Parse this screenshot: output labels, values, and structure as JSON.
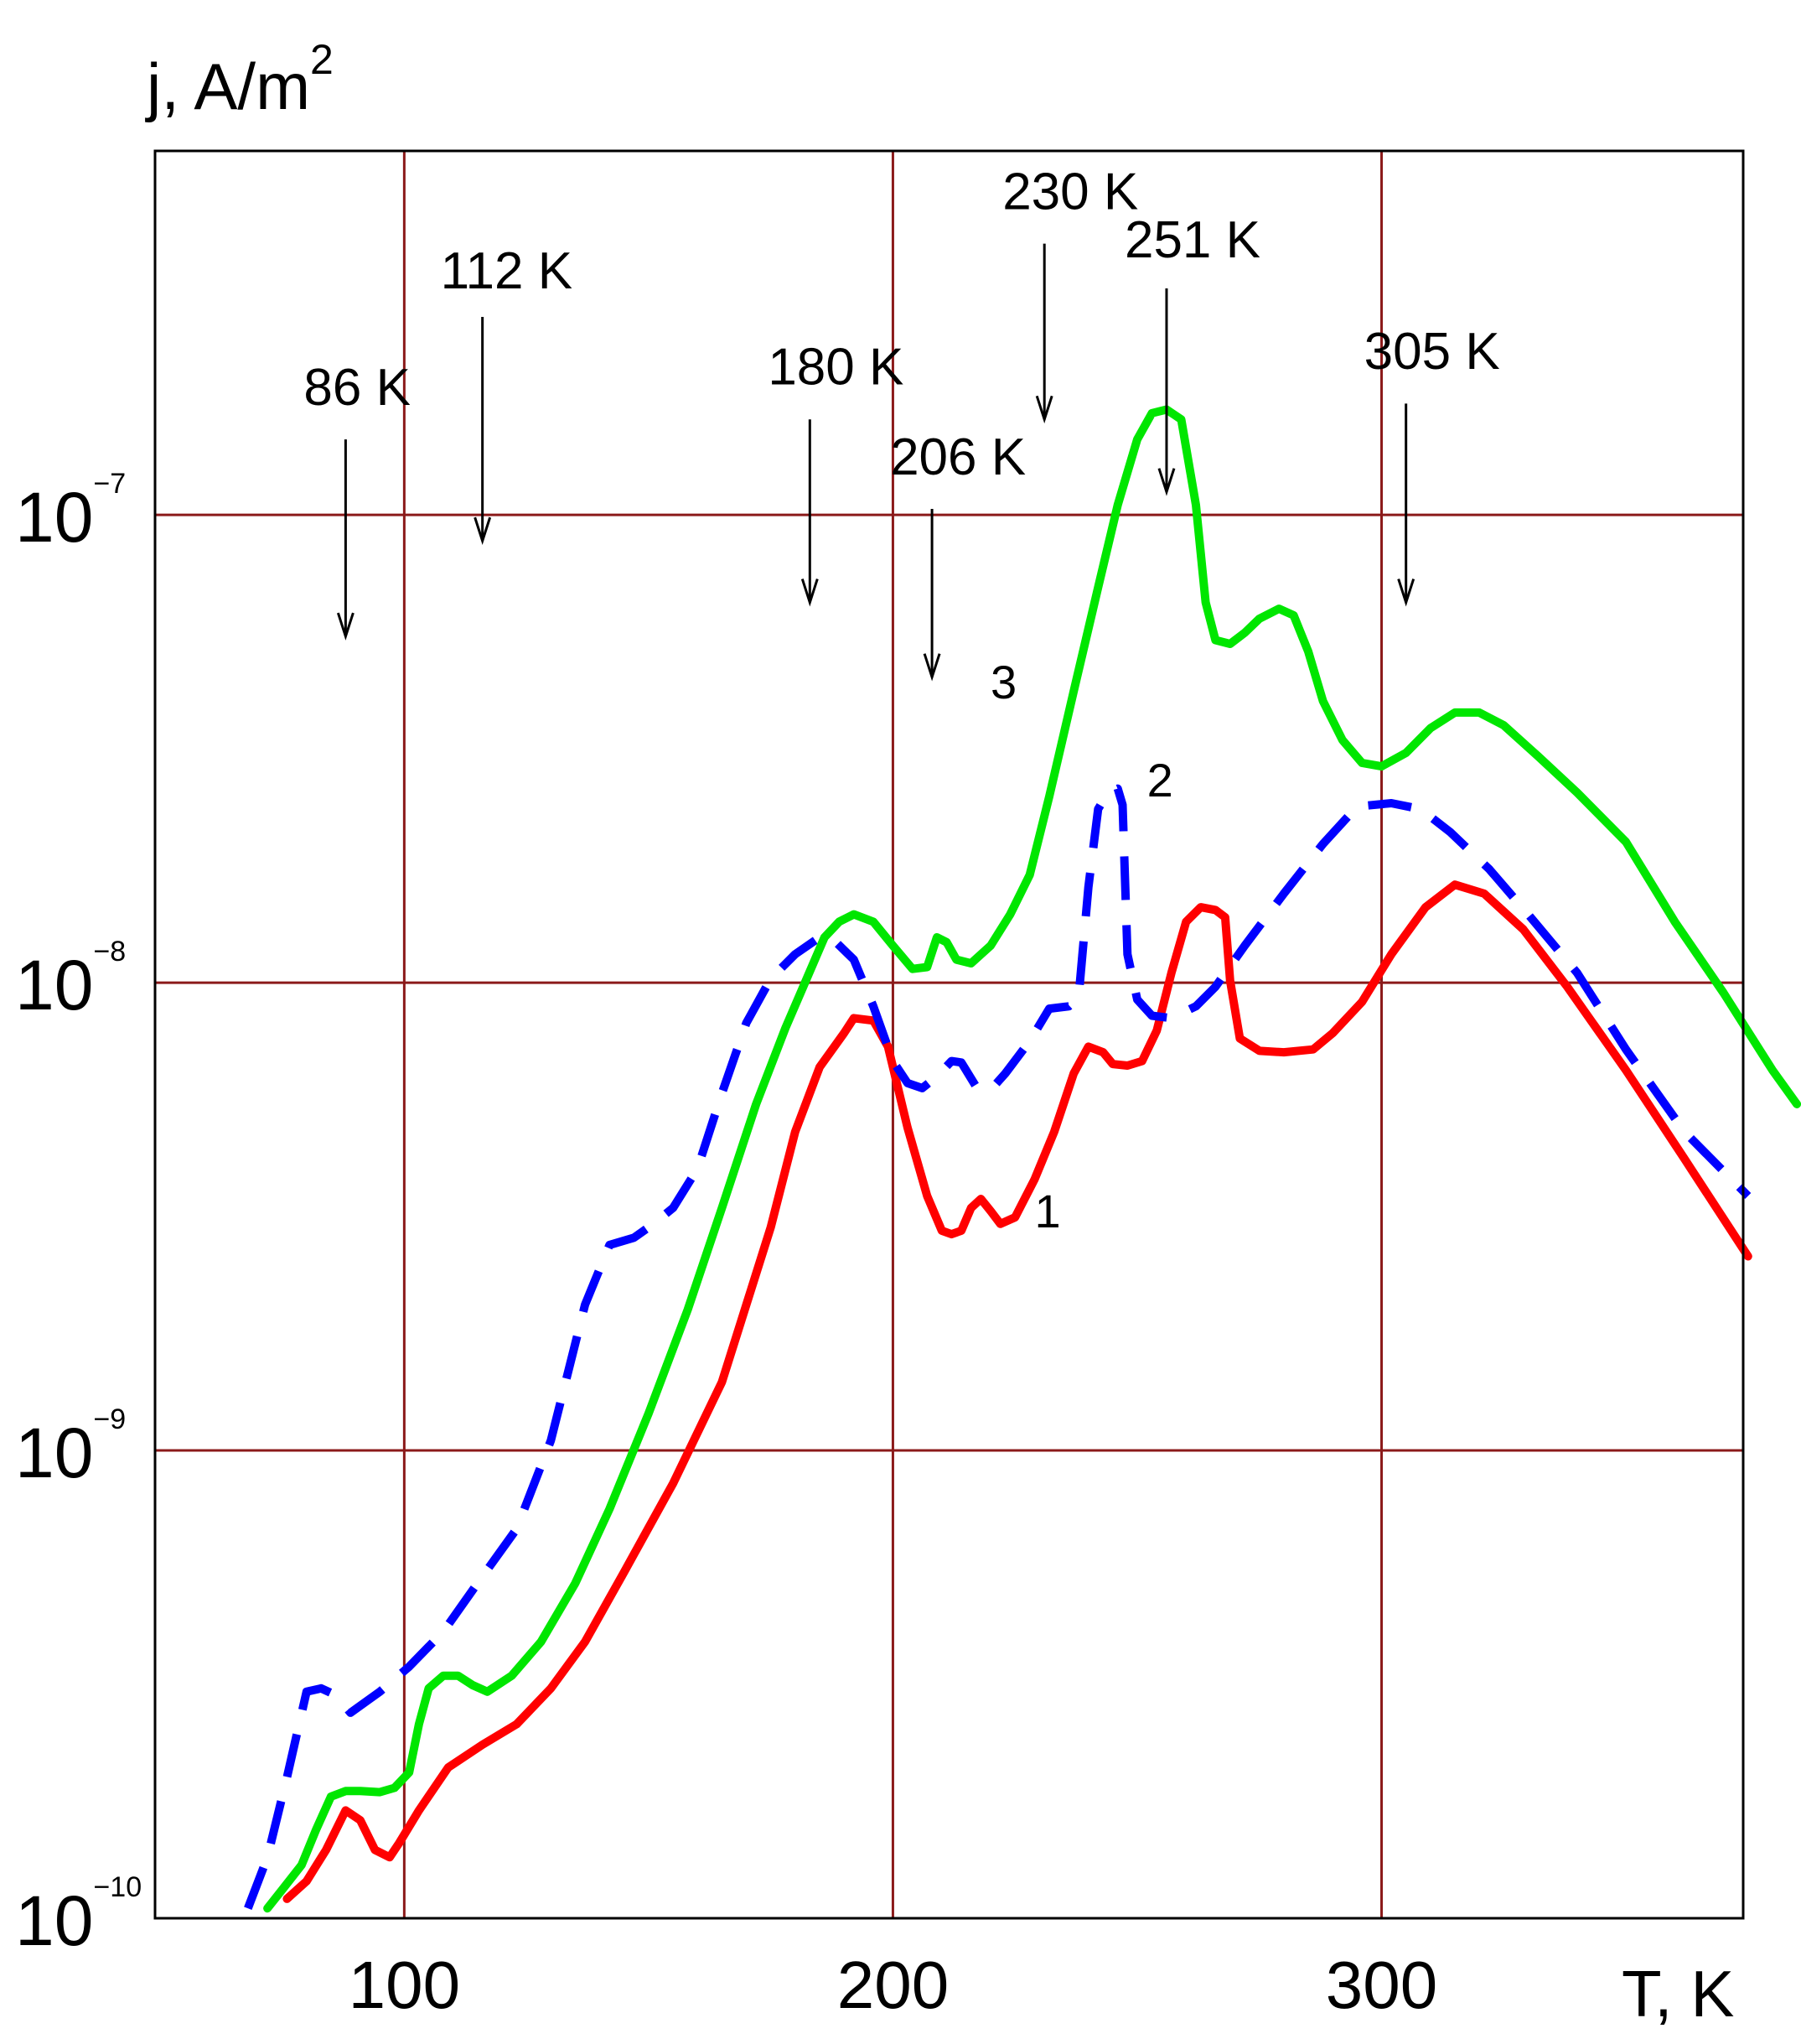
{
  "chart_data": {
    "type": "line",
    "title": "",
    "xlabel": "T, K",
    "ylabel": "j, A/m",
    "ylabel_sup": "2",
    "xscale": "linear",
    "yscale": "log",
    "xlim": [
      49,
      374
    ],
    "ylim": [
      1e-10,
      6e-07
    ],
    "grid": true,
    "legend": "none",
    "xticks": [
      {
        "value": 100,
        "label": "100"
      },
      {
        "value": 200,
        "label": "200"
      },
      {
        "value": 300,
        "label": "300"
      }
    ],
    "yticks": [
      {
        "value": 1e-10,
        "base": "10",
        "exp": "−10"
      },
      {
        "value": 1e-09,
        "base": "10",
        "exp": "−9"
      },
      {
        "value": 1e-08,
        "base": "10",
        "exp": "−8"
      },
      {
        "value": 1e-07,
        "base": "10",
        "exp": "−7"
      }
    ],
    "annotations": [
      {
        "text": "86 K",
        "x": 88,
        "y_text": 1.72e-07,
        "y_start": 1.45e-07,
        "y_end": 5.5e-08
      },
      {
        "text": "112 K",
        "x": 116,
        "y_text": 3.05e-07,
        "y_start": 2.65e-07,
        "y_end": 8.8e-08
      },
      {
        "text": "180 K",
        "x": 183,
        "y_text": 1.9e-07,
        "y_start": 1.6e-07,
        "y_end": 6.5e-08
      },
      {
        "text": "206 K",
        "x": 208,
        "y_text": 1.22e-07,
        "y_start": 1.03e-07,
        "y_end": 4.5e-08
      },
      {
        "text": "230 K",
        "x": 231,
        "y_text": 4.5e-07,
        "y_start": 3.8e-07,
        "y_end": 1.6e-07
      },
      {
        "text": "251 K",
        "x": 256,
        "y_text": 3.55e-07,
        "y_start": 3.05e-07,
        "y_end": 1.12e-07
      },
      {
        "text": "305 K",
        "x": 305,
        "y_text": 2.05e-07,
        "y_start": 1.73e-07,
        "y_end": 6.5e-08
      }
    ],
    "curve_labels": [
      {
        "text": "1",
        "x": 229,
        "y": 3e-09
      },
      {
        "text": "2",
        "x": 252,
        "y": 2.5e-08
      },
      {
        "text": "3",
        "x": 220,
        "y": 4.05e-08
      }
    ],
    "series": [
      {
        "label": "1",
        "color": "#ff0000",
        "style": "solid",
        "points": [
          [
            76,
            1.1e-10
          ],
          [
            80,
            1.2e-10
          ],
          [
            84,
            1.4e-10
          ],
          [
            88,
            1.7e-10
          ],
          [
            91,
            1.62e-10
          ],
          [
            94,
            1.4e-10
          ],
          [
            97,
            1.35e-10
          ],
          [
            99,
            1.45e-10
          ],
          [
            103,
            1.7e-10
          ],
          [
            109,
            2.1e-10
          ],
          [
            116,
            2.35e-10
          ],
          [
            123,
            2.6e-10
          ],
          [
            130,
            3.1e-10
          ],
          [
            137,
            3.9e-10
          ],
          [
            145,
            5.5e-10
          ],
          [
            155,
            8.5e-10
          ],
          [
            165,
            1.4e-09
          ],
          [
            175,
            3e-09
          ],
          [
            180,
            4.8e-09
          ],
          [
            185,
            6.6e-09
          ],
          [
            190,
            7.8e-09
          ],
          [
            192,
            8.4e-09
          ],
          [
            196,
            8.3e-09
          ],
          [
            199,
            7.3e-09
          ],
          [
            203,
            4.9e-09
          ],
          [
            207,
            3.5e-09
          ],
          [
            210,
            2.95e-09
          ],
          [
            212,
            2.9e-09
          ],
          [
            214,
            2.95e-09
          ],
          [
            216,
            3.3e-09
          ],
          [
            218,
            3.45e-09
          ],
          [
            220,
            3.25e-09
          ],
          [
            222,
            3.05e-09
          ],
          [
            225,
            3.15e-09
          ],
          [
            229,
            3.8e-09
          ],
          [
            233,
            4.8e-09
          ],
          [
            237,
            6.4e-09
          ],
          [
            240,
            7.3e-09
          ],
          [
            243,
            7.1e-09
          ],
          [
            245,
            6.7e-09
          ],
          [
            248,
            6.65e-09
          ],
          [
            251,
            6.8e-09
          ],
          [
            254,
            7.9e-09
          ],
          [
            257,
            1.05e-08
          ],
          [
            260,
            1.35e-08
          ],
          [
            263,
            1.45e-08
          ],
          [
            266,
            1.43e-08
          ],
          [
            268,
            1.38e-08
          ],
          [
            269,
            1.01e-08
          ],
          [
            271,
            7.6e-09
          ],
          [
            275,
            7.15e-09
          ],
          [
            280,
            7.1e-09
          ],
          [
            286,
            7.2e-09
          ],
          [
            290,
            7.8e-09
          ],
          [
            296,
            9.1e-09
          ],
          [
            302,
            1.15e-08
          ],
          [
            309,
            1.45e-08
          ],
          [
            315,
            1.62e-08
          ],
          [
            321,
            1.55e-08
          ],
          [
            329,
            1.3e-08
          ],
          [
            338,
            9.8e-09
          ],
          [
            350,
            6.5e-09
          ],
          [
            362,
            4.2e-09
          ],
          [
            375,
            2.6e-09
          ]
        ]
      },
      {
        "label": "2",
        "color": "#0000ff",
        "style": "dashed",
        "points": [
          [
            68,
            1.05e-10
          ],
          [
            72,
            1.35e-10
          ],
          [
            76,
            2e-10
          ],
          [
            80,
            3.05e-10
          ],
          [
            83,
            3.1e-10
          ],
          [
            86,
            3e-10
          ],
          [
            89,
            2.75e-10
          ],
          [
            95,
            3.05e-10
          ],
          [
            101,
            3.45e-10
          ],
          [
            108,
            4.1e-10
          ],
          [
            115,
            5.2e-10
          ],
          [
            123,
            6.8e-10
          ],
          [
            130,
            1.05e-09
          ],
          [
            137,
            2.05e-09
          ],
          [
            142,
            2.75e-09
          ],
          [
            147,
            2.85e-09
          ],
          [
            151,
            3.05e-09
          ],
          [
            155,
            3.3e-09
          ],
          [
            160,
            4e-09
          ],
          [
            165,
            5.8e-09
          ],
          [
            170,
            8.2e-09
          ],
          [
            175,
            1.02e-08
          ],
          [
            180,
            1.15e-08
          ],
          [
            185,
            1.25e-08
          ],
          [
            188,
            1.23e-08
          ],
          [
            192,
            1.12e-08
          ],
          [
            196,
            8.9e-09
          ],
          [
            200,
            6.8e-09
          ],
          [
            203,
            6.1e-09
          ],
          [
            206,
            5.95e-09
          ],
          [
            209,
            6.3e-09
          ],
          [
            212,
            6.8e-09
          ],
          [
            214,
            6.75e-09
          ],
          [
            217,
            6e-09
          ],
          [
            220,
            5.9e-09
          ],
          [
            223,
            6.4e-09
          ],
          [
            228,
            7.5e-09
          ],
          [
            232,
            8.8e-09
          ],
          [
            236,
            8.9e-09
          ],
          [
            238,
            9.3e-09
          ],
          [
            240,
            1.6e-08
          ],
          [
            242,
            2.35e-08
          ],
          [
            244,
            2.55e-08
          ],
          [
            246,
            2.6e-08
          ],
          [
            247,
            2.4e-08
          ],
          [
            248,
            1.15e-08
          ],
          [
            250,
            9.2e-09
          ],
          [
            253,
            8.5e-09
          ],
          [
            257,
            8.4e-09
          ],
          [
            262,
            8.9e-09
          ],
          [
            266,
            9.8e-09
          ],
          [
            272,
            1.2e-08
          ],
          [
            280,
            1.55e-08
          ],
          [
            288,
            1.98e-08
          ],
          [
            295,
            2.38e-08
          ],
          [
            302,
            2.42e-08
          ],
          [
            308,
            2.35e-08
          ],
          [
            314,
            2.1e-08
          ],
          [
            322,
            1.75e-08
          ],
          [
            330,
            1.4e-08
          ],
          [
            340,
            1.05e-08
          ],
          [
            350,
            7.2e-09
          ],
          [
            362,
            4.8e-09
          ],
          [
            375,
            3.5e-09
          ]
        ]
      },
      {
        "label": "3",
        "color": "#00e600",
        "style": "solid",
        "points": [
          [
            72,
            1.05e-10
          ],
          [
            75,
            1.15e-10
          ],
          [
            79,
            1.3e-10
          ],
          [
            82,
            1.55e-10
          ],
          [
            85,
            1.82e-10
          ],
          [
            88,
            1.87e-10
          ],
          [
            91,
            1.87e-10
          ],
          [
            95,
            1.86e-10
          ],
          [
            98,
            1.9e-10
          ],
          [
            101,
            2.05e-10
          ],
          [
            103,
            2.6e-10
          ],
          [
            105,
            3.1e-10
          ],
          [
            108,
            3.3e-10
          ],
          [
            111,
            3.3e-10
          ],
          [
            114,
            3.15e-10
          ],
          [
            117,
            3.05e-10
          ],
          [
            122,
            3.3e-10
          ],
          [
            128,
            3.9e-10
          ],
          [
            135,
            5.2e-10
          ],
          [
            142,
            7.5e-10
          ],
          [
            150,
            1.2e-09
          ],
          [
            158,
            2e-09
          ],
          [
            165,
            3.3e-09
          ],
          [
            172,
            5.5e-09
          ],
          [
            178,
            8e-09
          ],
          [
            182,
            1e-08
          ],
          [
            186,
            1.25e-08
          ],
          [
            189,
            1.35e-08
          ],
          [
            192,
            1.4e-08
          ],
          [
            196,
            1.35e-08
          ],
          [
            200,
            1.2e-08
          ],
          [
            204,
            1.07e-08
          ],
          [
            207,
            1.08e-08
          ],
          [
            209,
            1.25e-08
          ],
          [
            211,
            1.22e-08
          ],
          [
            213,
            1.12e-08
          ],
          [
            216,
            1.1e-08
          ],
          [
            220,
            1.2e-08
          ],
          [
            224,
            1.4e-08
          ],
          [
            228,
            1.7e-08
          ],
          [
            232,
            2.5e-08
          ],
          [
            237,
            4.2e-08
          ],
          [
            242,
            7e-08
          ],
          [
            246,
            1.05e-07
          ],
          [
            250,
            1.45e-07
          ],
          [
            253,
            1.65e-07
          ],
          [
            256,
            1.68e-07
          ],
          [
            259,
            1.6e-07
          ],
          [
            262,
            1.05e-07
          ],
          [
            264,
            6.5e-08
          ],
          [
            266,
            5.4e-08
          ],
          [
            269,
            5.3e-08
          ],
          [
            272,
            5.6e-08
          ],
          [
            275,
            6e-08
          ],
          [
            279,
            6.3e-08
          ],
          [
            282,
            6.1e-08
          ],
          [
            285,
            5.1e-08
          ],
          [
            288,
            4e-08
          ],
          [
            292,
            3.3e-08
          ],
          [
            296,
            2.95e-08
          ],
          [
            300,
            2.9e-08
          ],
          [
            305,
            3.1e-08
          ],
          [
            310,
            3.5e-08
          ],
          [
            315,
            3.78e-08
          ],
          [
            320,
            3.78e-08
          ],
          [
            325,
            3.55e-08
          ],
          [
            332,
            3.05e-08
          ],
          [
            340,
            2.55e-08
          ],
          [
            350,
            2e-08
          ],
          [
            360,
            1.35e-08
          ],
          [
            370,
            9.5e-09
          ],
          [
            380,
            6.5e-09
          ],
          [
            385,
            5.5e-09
          ]
        ]
      }
    ]
  }
}
